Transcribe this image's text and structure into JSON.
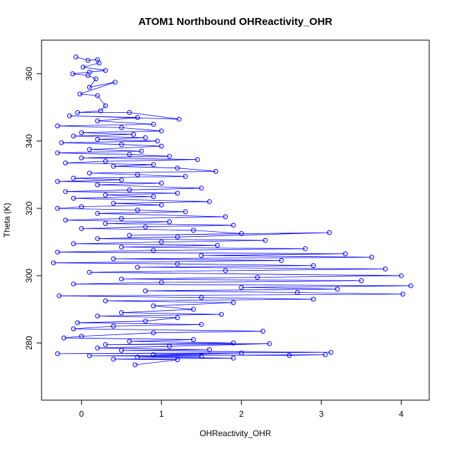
{
  "chart_data": {
    "type": "scatter",
    "title": "ATOM1 Northbound OHReactivity_OHR",
    "xlabel": "OHReactivity_OHR",
    "ylabel": "Theta (K)",
    "xlim": [
      -0.5,
      4.35
    ],
    "ylim": [
      263,
      370
    ],
    "x_ticks": [
      0,
      1,
      2,
      3,
      4
    ],
    "y_ticks": [
      280,
      300,
      320,
      340,
      360
    ],
    "grid": false,
    "legend": "none",
    "style": "points connected by lines",
    "series": [
      {
        "color": "#0000ff",
        "points": [
          [
            -0.07,
            365.0
          ],
          [
            0.08,
            364.0
          ],
          [
            0.2,
            364.2
          ],
          [
            0.22,
            363.2
          ],
          [
            0.02,
            362.0
          ],
          [
            0.3,
            361.0
          ],
          [
            0.1,
            360.5
          ],
          [
            -0.11,
            360.0
          ],
          [
            0.08,
            359.5
          ],
          [
            0.18,
            358.5
          ],
          [
            0.1,
            356.0
          ],
          [
            0.42,
            357.5
          ],
          [
            -0.02,
            354.0
          ],
          [
            0.2,
            353.5
          ],
          [
            0.3,
            350.5
          ],
          [
            0.24,
            349.0
          ],
          [
            -0.05,
            348.5
          ],
          [
            0.6,
            348.5
          ],
          [
            1.22,
            346.5
          ],
          [
            -0.15,
            347.5
          ],
          [
            0.7,
            347.0
          ],
          [
            0.2,
            346.0
          ],
          [
            0.9,
            345.0
          ],
          [
            -0.3,
            344.5
          ],
          [
            0.5,
            344.0
          ],
          [
            1.0,
            343.0
          ],
          [
            0.0,
            342.5
          ],
          [
            0.65,
            342.0
          ],
          [
            -0.1,
            341.5
          ],
          [
            0.8,
            341.0
          ],
          [
            0.2,
            340.5
          ],
          [
            0.95,
            340.0
          ],
          [
            -0.25,
            339.5
          ],
          [
            0.5,
            339.0
          ],
          [
            1.0,
            338.5
          ],
          [
            0.1,
            337.5
          ],
          [
            0.75,
            337.0
          ],
          [
            -0.3,
            336.5
          ],
          [
            0.6,
            336.0
          ],
          [
            1.1,
            335.5
          ],
          [
            0.0,
            335.0
          ],
          [
            1.45,
            334.5
          ],
          [
            0.3,
            334.0
          ],
          [
            -0.2,
            333.5
          ],
          [
            0.9,
            333.0
          ],
          [
            0.4,
            332.5
          ],
          [
            1.2,
            332.0
          ],
          [
            1.68,
            331.0
          ],
          [
            0.1,
            330.5
          ],
          [
            0.7,
            330.0
          ],
          [
            1.3,
            329.5
          ],
          [
            -0.1,
            329.0
          ],
          [
            0.5,
            328.5
          ],
          [
            -0.3,
            328.0
          ],
          [
            1.0,
            327.5
          ],
          [
            0.2,
            327.0
          ],
          [
            1.5,
            326.0
          ],
          [
            0.6,
            325.5
          ],
          [
            -0.2,
            325.0
          ],
          [
            1.2,
            324.5
          ],
          [
            0.3,
            324.0
          ],
          [
            0.9,
            323.5
          ],
          [
            -0.1,
            323.0
          ],
          [
            1.6,
            322.0
          ],
          [
            0.4,
            321.5
          ],
          [
            1.0,
            321.0
          ],
          [
            0.0,
            320.5
          ],
          [
            -0.3,
            320.0
          ],
          [
            0.7,
            319.5
          ],
          [
            1.3,
            319.0
          ],
          [
            0.2,
            318.5
          ],
          [
            1.8,
            317.5
          ],
          [
            0.5,
            317.0
          ],
          [
            -0.2,
            316.5
          ],
          [
            1.1,
            316.0
          ],
          [
            0.3,
            315.5
          ],
          [
            1.9,
            315.0
          ],
          [
            0.8,
            314.5
          ],
          [
            0.0,
            314.0
          ],
          [
            1.4,
            313.5
          ],
          [
            2.0,
            312.5
          ],
          [
            0.6,
            312.0
          ],
          [
            3.1,
            312.8
          ],
          [
            1.2,
            311.5
          ],
          [
            0.2,
            311.0
          ],
          [
            2.3,
            310.5
          ],
          [
            1.0,
            310.0
          ],
          [
            -0.1,
            309.5
          ],
          [
            1.7,
            309.0
          ],
          [
            0.5,
            308.5
          ],
          [
            2.8,
            308.0
          ],
          [
            0.9,
            307.5
          ],
          [
            -0.3,
            307.0
          ],
          [
            3.3,
            306.5
          ],
          [
            1.5,
            306.0
          ],
          [
            3.63,
            305.5
          ],
          [
            0.4,
            305.0
          ],
          [
            2.5,
            304.5
          ],
          [
            -0.35,
            303.8
          ],
          [
            1.2,
            303.5
          ],
          [
            2.9,
            303.0
          ],
          [
            0.7,
            302.5
          ],
          [
            3.8,
            302.0
          ],
          [
            1.8,
            301.5
          ],
          [
            0.1,
            301.0
          ],
          [
            4.0,
            300.0
          ],
          [
            2.2,
            299.5
          ],
          [
            0.5,
            299.0
          ],
          [
            3.5,
            298.5
          ],
          [
            1.0,
            298.0
          ],
          [
            -0.1,
            297.5
          ],
          [
            4.12,
            297.0
          ],
          [
            2.0,
            296.5
          ],
          [
            3.2,
            296.0
          ],
          [
            0.8,
            295.5
          ],
          [
            2.7,
            295.0
          ],
          [
            4.02,
            294.5
          ],
          [
            -0.28,
            294.0
          ],
          [
            1.5,
            293.5
          ],
          [
            2.9,
            293.0
          ],
          [
            0.3,
            292.5
          ],
          [
            1.9,
            292.0
          ],
          [
            0.9,
            291.0
          ],
          [
            1.4,
            290.0
          ],
          [
            0.5,
            289.0
          ],
          [
            1.75,
            288.5
          ],
          [
            0.2,
            288.0
          ],
          [
            1.2,
            287.5
          ],
          [
            0.8,
            286.5
          ],
          [
            -0.05,
            286.0
          ],
          [
            1.5,
            285.5
          ],
          [
            0.4,
            285.0
          ],
          [
            -0.1,
            284.2
          ],
          [
            2.27,
            283.5
          ],
          [
            0.9,
            283.0
          ],
          [
            0.0,
            282.0
          ],
          [
            -0.22,
            281.5
          ],
          [
            1.4,
            281.0
          ],
          [
            0.6,
            280.5
          ],
          [
            1.9,
            280.0
          ],
          [
            0.3,
            279.5
          ],
          [
            2.35,
            279.8
          ],
          [
            1.1,
            279.0
          ],
          [
            0.2,
            278.5
          ],
          [
            1.6,
            278.0
          ],
          [
            0.5,
            277.8
          ],
          [
            3.12,
            277.2
          ],
          [
            -0.3,
            276.8
          ],
          [
            2.0,
            277.0
          ],
          [
            0.9,
            276.5
          ],
          [
            2.6,
            276.3
          ],
          [
            3.05,
            276.5
          ],
          [
            0.1,
            276.2
          ],
          [
            1.5,
            276.0
          ],
          [
            0.7,
            275.8
          ],
          [
            1.9,
            275.5
          ],
          [
            0.4,
            275.2
          ],
          [
            1.2,
            275.0
          ],
          [
            0.67,
            273.5
          ]
        ]
      }
    ]
  }
}
